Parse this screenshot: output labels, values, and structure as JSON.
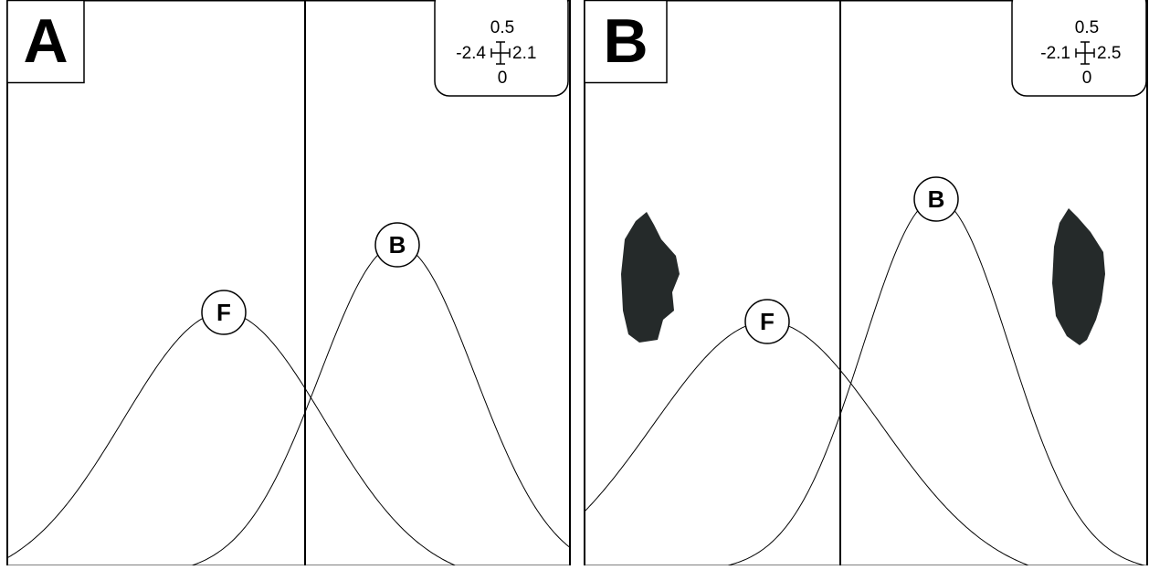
{
  "panels": [
    {
      "label": "A",
      "legend": {
        "top": "0.5",
        "left": "-2.4",
        "right": "2.1",
        "bottom": "0"
      },
      "curves": [
        "F",
        "B"
      ]
    },
    {
      "label": "B",
      "legend": {
        "top": "0.5",
        "left": "-2.1",
        "right": "2.5",
        "bottom": "0"
      },
      "curves": [
        "F",
        "B"
      ]
    }
  ]
}
